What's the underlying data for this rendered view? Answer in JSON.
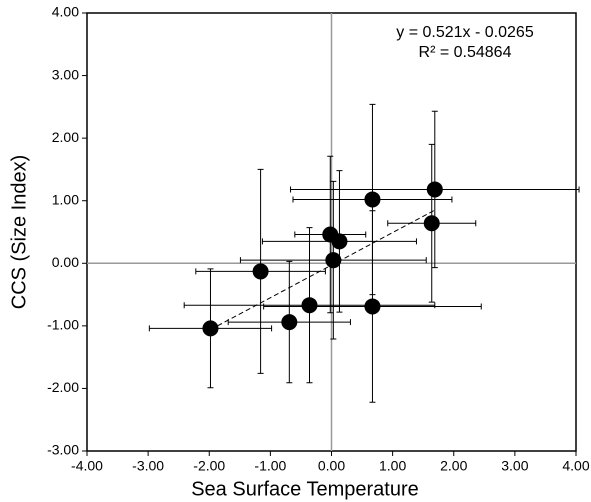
{
  "chart_data": {
    "type": "scatter",
    "x_label": "Sea Surface Temperature",
    "y_label": "CCS (Size Index)",
    "annotations": [
      "y = 0.521x - 0.0265",
      "R² = 0.54864"
    ],
    "x": [
      -1.98,
      -1.16,
      -0.69,
      -0.36,
      -0.02,
      0.13,
      0.03,
      0.67,
      0.67,
      1.69,
      1.64
    ],
    "values": [
      -1.04,
      -0.13,
      -0.94,
      -0.67,
      0.46,
      0.35,
      0.05,
      1.02,
      -0.69,
      1.18,
      0.64
    ],
    "x_err": [
      1.0,
      1.06,
      1.0,
      2.05,
      0.58,
      1.26,
      1.52,
      1.3,
      1.78,
      2.36,
      0.72
    ],
    "y_err": [
      0.95,
      1.63,
      0.97,
      1.24,
      1.25,
      1.13,
      1.26,
      1.52,
      1.53,
      1.25,
      1.26
    ],
    "color": "#000000",
    "trendline": {
      "x": [
        -1.98,
        1.69
      ],
      "y": [
        -1.06,
        0.85
      ]
    },
    "xlim": [
      -4,
      4
    ],
    "ylim": [
      -3,
      4
    ],
    "xticks": [
      {
        "value": -4,
        "label": "-4.00"
      },
      {
        "value": -3,
        "label": "-3.00"
      },
      {
        "value": -2,
        "label": "-2.00"
      },
      {
        "value": -1,
        "label": "-1.00"
      },
      {
        "value": 0,
        "label": "0.00"
      },
      {
        "value": 1,
        "label": "1.00"
      },
      {
        "value": 2,
        "label": "2.00"
      },
      {
        "value": 3,
        "label": "3.00"
      },
      {
        "value": 4,
        "label": "4.00"
      }
    ],
    "yticks": [
      {
        "value": -3,
        "label": "-3.00"
      },
      {
        "value": -2,
        "label": "-2.00"
      },
      {
        "value": -1,
        "label": "-1.00"
      },
      {
        "value": 0,
        "label": "0.00"
      },
      {
        "value": 1,
        "label": "1.00"
      },
      {
        "value": 2,
        "label": "2.00"
      },
      {
        "value": 3,
        "label": "3.00"
      },
      {
        "value": 4,
        "label": "4.00"
      }
    ]
  }
}
